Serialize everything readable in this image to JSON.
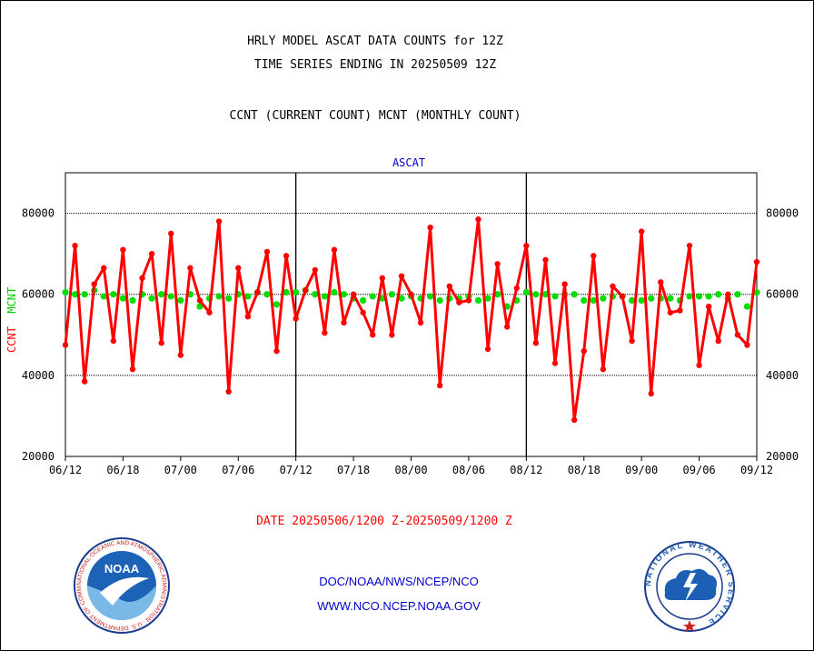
{
  "chart_data": {
    "type": "line",
    "title": "HRLY MODEL ASCAT DATA COUNTS for 12Z",
    "subtitle_line": "TIME SERIES ENDING IN 20250509 12Z",
    "description": "CCNT (CURRENT COUNT) MCNT (MONTHLY COUNT)",
    "panel_label": "ASCAT",
    "ylabel_ccnt": "CCNT",
    "ylabel_mcnt": "MCNT",
    "xlabel": "DATE 20250506/1200 Z-20250509/1200 Z",
    "ylim": [
      20000,
      90000
    ],
    "yticks": [
      20000,
      40000,
      60000,
      80000
    ],
    "xtick_labels": [
      "06/12",
      "06/18",
      "07/00",
      "07/06",
      "07/12",
      "07/18",
      "08/00",
      "08/06",
      "08/12",
      "08/18",
      "09/00",
      "09/06",
      "09/12"
    ],
    "colors": {
      "ccnt": "#ff0000",
      "mcnt": "#00dd00",
      "grid": "#000000"
    },
    "series": [
      {
        "name": "CCNT",
        "values": [
          47500,
          72000,
          38500,
          62500,
          66500,
          48500,
          71000,
          41500,
          64000,
          70000,
          48000,
          75000,
          45000,
          66500,
          58500,
          55500,
          78000,
          36000,
          66500,
          54500,
          60500,
          70500,
          46000,
          69500,
          54000,
          61000,
          66000,
          50500,
          71000,
          53000,
          60000,
          55500,
          50000,
          64000,
          50000,
          64500,
          60000,
          53000,
          76500,
          37500,
          62000,
          58000,
          58500,
          78500,
          46500,
          67500,
          52000,
          61500,
          72000,
          48000,
          68500,
          43000,
          62500,
          29000,
          46000,
          69500,
          41500,
          62000,
          59500,
          48500,
          75500,
          35500,
          63000,
          55500,
          56000,
          72000,
          42500,
          57000,
          48500,
          60000,
          50000,
          47500,
          68000
        ],
        "color": "#ff0000"
      },
      {
        "name": "MCNT",
        "values": [
          60500,
          60000,
          60000,
          61000,
          59500,
          60000,
          59000,
          58500,
          60000,
          59000,
          60000,
          59500,
          58500,
          60000,
          57000,
          59000,
          59500,
          59000,
          60000,
          59500,
          60500,
          60000,
          57500,
          60500,
          60500,
          61000,
          60000,
          59500,
          60500,
          60000,
          59000,
          58500,
          59500,
          59000,
          60000,
          59000,
          59500,
          59000,
          59500,
          58500,
          59000,
          59000,
          59500,
          58500,
          59000,
          60000,
          57000,
          58500,
          60500,
          60000,
          60000,
          59500,
          60000,
          60000,
          58500,
          58500,
          59000,
          59500,
          59500,
          58500,
          58500,
          59000,
          59000,
          59000,
          58500,
          59500,
          59500,
          59500,
          60000,
          59000,
          60000,
          57000,
          60500
        ],
        "color": "#00dd00"
      }
    ],
    "date_range": "DATE 20250506/1200 Z-20250509/1200 Z"
  },
  "credits": {
    "line1": "DOC/NOAA/NWS/NCEP/NCO",
    "line2": "WWW.NCO.NCEP.NOAA.GOV"
  },
  "logos": {
    "left": {
      "icon": "noaa-logo-icon",
      "text": "NOAA",
      "ring_text": "NATIONAL OCEANIC AND ATMOSPHERIC ADMINISTRATION · U.S. DEPARTMENT OF COMMERCE"
    },
    "right": {
      "icon": "nws-logo-icon",
      "ring_text": "NATIONAL WEATHER SERVICE"
    }
  }
}
